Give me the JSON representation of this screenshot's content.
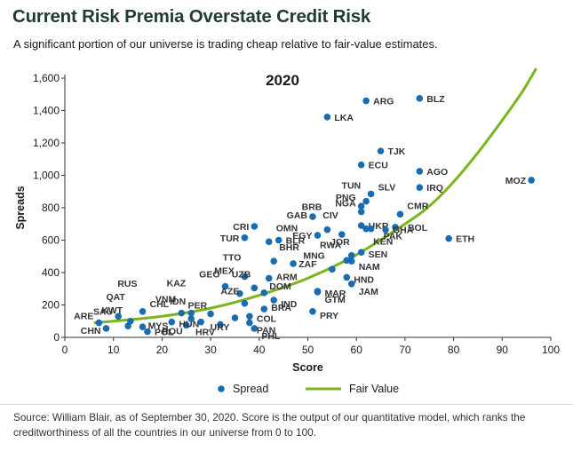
{
  "header": {
    "title": "Current Risk Premia Overstate Credit Risk",
    "subtitle": "A significant portion of our universe is trading cheap relative to fair-value estimates."
  },
  "footer": {
    "source": "Source: William Blair, as of September 30, 2020. Score is the output of our quantitative model, which ranks the creditworthiness of all the countries in our universe from 0 to 100."
  },
  "colors": {
    "title": "#1f3d2c",
    "spread_dot": "#1a6cb0",
    "fair_value_line": "#7ab51d",
    "axis": "#333333"
  },
  "chart_data": {
    "type": "scatter",
    "title": "2020",
    "xlabel": "Score",
    "ylabel": "Spreads",
    "xlim": [
      0,
      100
    ],
    "ylim": [
      0,
      1600
    ],
    "x_ticks": [
      "0",
      "10",
      "20",
      "30",
      "40",
      "50",
      "60",
      "70",
      "80",
      "90",
      "100"
    ],
    "y_ticks": [
      "0",
      "200",
      "400",
      "600",
      "800",
      "1,000",
      "1,200",
      "1,400",
      "1,600"
    ],
    "grid": false,
    "legend_position": "bottom",
    "legend": [
      {
        "name": "Spread",
        "marker": "dot"
      },
      {
        "name": "Fair Value",
        "marker": "line"
      }
    ],
    "series": [
      {
        "name": "Spread",
        "points": [
          {
            "label": "ARE",
            "x": 7,
            "y": 90
          },
          {
            "label": "CHN",
            "x": 8.5,
            "y": 55
          },
          {
            "label": "SAU",
            "x": 11,
            "y": 130
          },
          {
            "label": "KWT",
            "x": 13,
            "y": 70
          },
          {
            "label": "QAT",
            "x": 13.5,
            "y": 100
          },
          {
            "label": "RUS",
            "x": 16,
            "y": 160
          },
          {
            "label": "CHL",
            "x": 16,
            "y": 65
          },
          {
            "label": "POL",
            "x": 17,
            "y": 35
          },
          {
            "label": "MYS",
            "x": 22,
            "y": 95
          },
          {
            "label": "VNM",
            "x": 24,
            "y": 150
          },
          {
            "label": "KAZ",
            "x": 26,
            "y": 150
          },
          {
            "label": "ROU",
            "x": 25,
            "y": 75
          },
          {
            "label": "HUN",
            "x": 28,
            "y": 95
          },
          {
            "label": "IDN",
            "x": 26,
            "y": 115
          },
          {
            "label": "PER",
            "x": 30,
            "y": 145
          },
          {
            "label": "HRV",
            "x": 32,
            "y": 80
          },
          {
            "label": "GEO",
            "x": 33,
            "y": 315
          },
          {
            "label": "URY",
            "x": 35,
            "y": 120
          },
          {
            "label": "MEX",
            "x": 36,
            "y": 270
          },
          {
            "label": "AZE",
            "x": 37,
            "y": 210
          },
          {
            "label": "TTO",
            "x": 37,
            "y": 375
          },
          {
            "label": "TUR",
            "x": 37,
            "y": 615
          },
          {
            "label": "CRI",
            "x": 39,
            "y": 685
          },
          {
            "label": "UZB",
            "x": 39,
            "y": 305
          },
          {
            "label": "PAN",
            "x": 38,
            "y": 90
          },
          {
            "label": "COL",
            "x": 38,
            "y": 130
          },
          {
            "label": "PHL",
            "x": 39,
            "y": 55
          },
          {
            "label": "BRA",
            "x": 41,
            "y": 175
          },
          {
            "label": "DOM",
            "x": 41,
            "y": 275
          },
          {
            "label": "OMN",
            "x": 42,
            "y": 590
          },
          {
            "label": "BLR",
            "x": 44,
            "y": 600
          },
          {
            "label": "BHR",
            "x": 43,
            "y": 470
          },
          {
            "label": "ARM",
            "x": 42,
            "y": 365
          },
          {
            "label": "IND",
            "x": 43,
            "y": 230
          },
          {
            "label": "ZAF",
            "x": 47,
            "y": 455
          },
          {
            "label": "EGY",
            "x": 52,
            "y": 630
          },
          {
            "label": "GAB",
            "x": 51,
            "y": 745
          },
          {
            "label": "BRB",
            "x": 54,
            "y": 665
          },
          {
            "label": "PRY",
            "x": 51,
            "y": 160
          },
          {
            "label": "GTM",
            "x": 52,
            "y": 280
          },
          {
            "label": "MAR",
            "x": 52,
            "y": 285
          },
          {
            "label": "MNG",
            "x": 55,
            "y": 420
          },
          {
            "label": "RWA",
            "x": 58,
            "y": 475
          },
          {
            "label": "CIV",
            "x": 57,
            "y": 635
          },
          {
            "label": "NAM",
            "x": 59,
            "y": 470
          },
          {
            "label": "HND",
            "x": 58,
            "y": 370
          },
          {
            "label": "JAM",
            "x": 59,
            "y": 330
          },
          {
            "label": "JOR",
            "x": 59,
            "y": 505
          },
          {
            "label": "SEN",
            "x": 61,
            "y": 525
          },
          {
            "label": "KEN",
            "x": 62,
            "y": 670
          },
          {
            "label": "LKA",
            "x": 54,
            "y": 1360
          },
          {
            "label": "ARG",
            "x": 62,
            "y": 1460
          },
          {
            "label": "BLZ",
            "x": 73,
            "y": 1475
          },
          {
            "label": "TJK",
            "x": 65,
            "y": 1150
          },
          {
            "label": "ECU",
            "x": 61,
            "y": 1065
          },
          {
            "label": "AGO",
            "x": 73,
            "y": 1025
          },
          {
            "label": "IRQ",
            "x": 73,
            "y": 925
          },
          {
            "label": "SLV",
            "x": 63,
            "y": 885
          },
          {
            "label": "PNG",
            "x": 61,
            "y": 810
          },
          {
            "label": "TUN",
            "x": 62,
            "y": 840
          },
          {
            "label": "NGA",
            "x": 61,
            "y": 775
          },
          {
            "label": "CMR",
            "x": 69,
            "y": 760
          },
          {
            "label": "UKR",
            "x": 61,
            "y": 690
          },
          {
            "label": "BOL",
            "x": 68,
            "y": 680
          },
          {
            "label": "GHA",
            "x": 66,
            "y": 665
          },
          {
            "label": "PAK",
            "x": 63,
            "y": 670
          },
          {
            "label": "ETH",
            "x": 79,
            "y": 610
          },
          {
            "label": "MOZ",
            "x": 96,
            "y": 970
          }
        ]
      },
      {
        "name": "Fair Value",
        "points": [
          {
            "x": 6,
            "y": 90
          },
          {
            "x": 10,
            "y": 100
          },
          {
            "x": 20,
            "y": 130
          },
          {
            "x": 30,
            "y": 180
          },
          {
            "x": 40,
            "y": 260
          },
          {
            "x": 50,
            "y": 365
          },
          {
            "x": 60,
            "y": 510
          },
          {
            "x": 70,
            "y": 700
          },
          {
            "x": 75,
            "y": 810
          },
          {
            "x": 80,
            "y": 960
          },
          {
            "x": 85,
            "y": 1140
          },
          {
            "x": 90,
            "y": 1340
          },
          {
            "x": 94,
            "y": 1510
          },
          {
            "x": 97,
            "y": 1660
          }
        ]
      }
    ]
  }
}
